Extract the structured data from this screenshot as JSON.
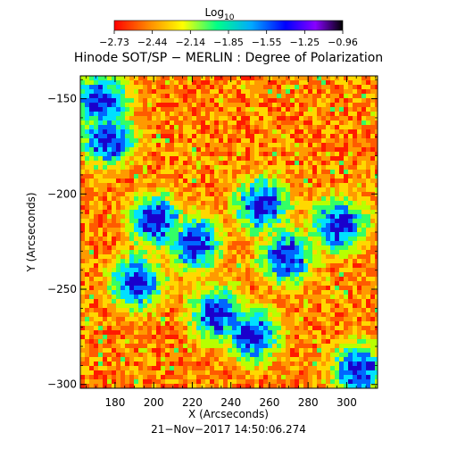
{
  "chart_data": {
    "type": "heatmap",
    "title": "Hinode SOT/SP − MERLIN : Degree of Polarization",
    "xlabel": "X (Arcseconds)",
    "ylabel": "Y (Arcseconds)",
    "xlim": [
      162,
      316
    ],
    "ylim": [
      -302,
      -138
    ],
    "x_ticks": [
      180,
      200,
      220,
      240,
      260,
      280,
      300
    ],
    "y_ticks": [
      -150,
      -200,
      -250,
      -300
    ],
    "x_tick_labels": [
      "180",
      "200",
      "220",
      "240",
      "260",
      "280",
      "300"
    ],
    "y_tick_labels": [
      "−150",
      "−200",
      "−250",
      "−300"
    ],
    "colorbar": {
      "label_base": "Log",
      "label_sub": "10",
      "min": -2.73,
      "max": -0.96,
      "tick_labels": [
        "−2.73",
        "−2.44",
        "−2.14",
        "−1.85",
        "−1.55",
        "−1.25",
        "−0.96"
      ],
      "colors": [
        "#ff0000",
        "#ff8800",
        "#ffff00",
        "#00ff88",
        "#00aaff",
        "#0000ff",
        "#8800ff",
        "#000000"
      ]
    },
    "clusters_high_polarization": [
      {
        "x": 200,
        "y": -213
      },
      {
        "x": 220,
        "y": -225
      },
      {
        "x": 255,
        "y": -205
      },
      {
        "x": 268,
        "y": -232
      },
      {
        "x": 232,
        "y": -262
      },
      {
        "x": 250,
        "y": -273
      },
      {
        "x": 175,
        "y": -170
      },
      {
        "x": 190,
        "y": -245
      },
      {
        "x": 295,
        "y": -215
      },
      {
        "x": 305,
        "y": -292
      },
      {
        "x": 172,
        "y": -150
      }
    ],
    "timestamp": "21−Nov−2017 14:50:06.274"
  }
}
